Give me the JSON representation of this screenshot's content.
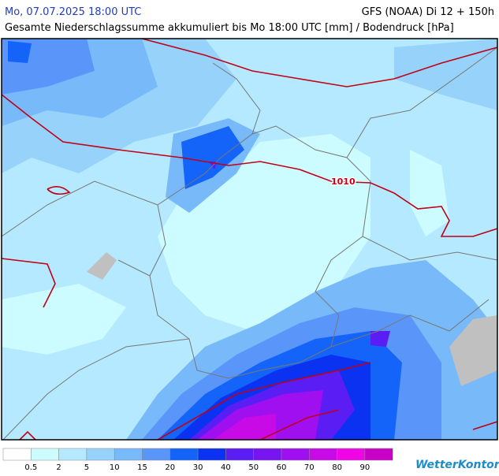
{
  "header": {
    "datetime": "Mo, 07.07.2025 18:00 UTC",
    "model": "GFS (NOAA) Di 12 + 150h",
    "subtitle": "Gesamte Niederschlagssumme akkumuliert bis Mo 18:00 UTC [mm] / Bodendruck [hPa]"
  },
  "map": {
    "isobar_label": "1010"
  },
  "legend": {
    "colors": [
      "#ffffff",
      "#ccfcff",
      "#b5e9ff",
      "#96d2fa",
      "#78b9fa",
      "#5a96fa",
      "#1464fa",
      "#0a32f0",
      "#5a1ef5",
      "#7814f0",
      "#a00ff0",
      "#c80ae6",
      "#f005e6",
      "#c800c8"
    ],
    "thresholds": [
      0.5,
      2,
      5,
      10,
      15,
      20,
      30,
      40,
      50,
      60,
      70,
      80,
      90
    ]
  },
  "logo": "WetterKontor"
}
